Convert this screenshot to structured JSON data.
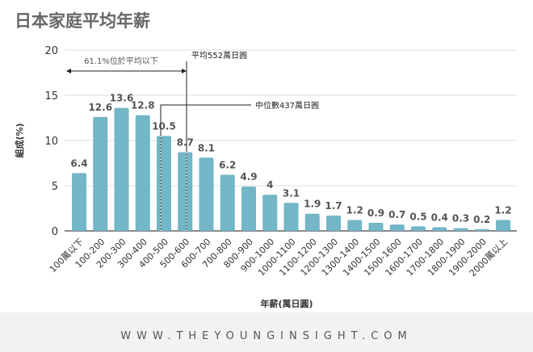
{
  "title": "日本家庭平均年薪",
  "chart_data": {
    "type": "bar",
    "title": "日本家庭平均年薪",
    "xlabel": "年薪(萬日圓)",
    "ylabel": "組成(%)",
    "ylim": [
      0,
      20
    ],
    "yticks": [
      0,
      5,
      10,
      15,
      20
    ],
    "grid": true,
    "categories": [
      "100萬以下",
      "100-200",
      "200-300",
      "300-400",
      "400-500",
      "500-600",
      "600-700",
      "700-800",
      "800-900",
      "900-1000",
      "1000-1100",
      "1100-1200",
      "1200-1300",
      "1300-1400",
      "1400-1500",
      "1500-1600",
      "1600-1700",
      "1700-1800",
      "1800-1900",
      "1900-2000",
      "2000萬以上"
    ],
    "values": [
      6.4,
      12.6,
      13.6,
      12.8,
      10.5,
      8.7,
      8.1,
      6.2,
      4.9,
      4,
      3.1,
      1.9,
      1.7,
      1.2,
      0.9,
      0.7,
      0.5,
      0.4,
      0.3,
      0.2,
      1.2
    ],
    "bar_color": "#72b6c8",
    "annotations": {
      "mean_label": "平均552萬日圓",
      "median_label": "中位數437萬日圓",
      "below_mean_label": "61.1%位於平均以下",
      "mean_value": 552,
      "median_value": 437
    }
  },
  "footer": "WWW.THEYOUNGINSIGHT.COM"
}
